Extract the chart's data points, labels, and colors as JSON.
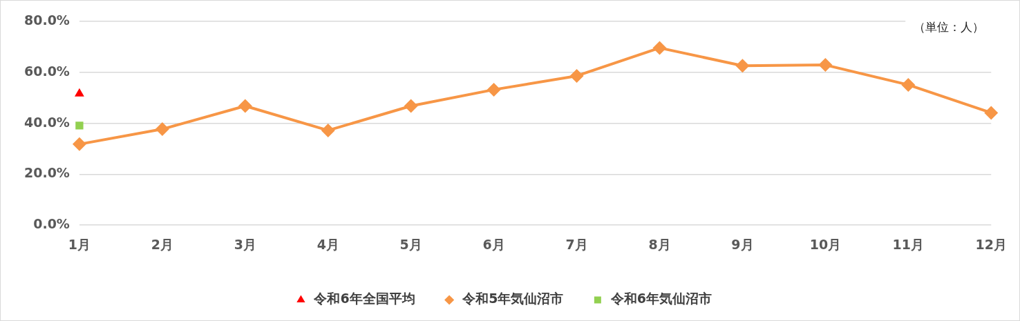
{
  "chart_data": {
    "type": "line",
    "categories": [
      "1月",
      "2月",
      "3月",
      "4月",
      "5月",
      "6月",
      "7月",
      "8月",
      "9月",
      "10月",
      "11月",
      "12月"
    ],
    "series": [
      {
        "name": "令和6年全国平均",
        "color": "#ff0000",
        "marker": "triangle",
        "values": [
          51.6,
          null,
          null,
          null,
          null,
          null,
          null,
          null,
          null,
          null,
          null,
          null
        ]
      },
      {
        "name": "令和5年気仙沼市",
        "color": "#f79646",
        "marker": "diamond",
        "values": [
          31.8,
          37.7,
          46.8,
          37.2,
          46.8,
          53.2,
          58.6,
          69.6,
          62.6,
          62.9,
          55.1,
          44.1
        ]
      },
      {
        "name": "令和6年気仙沼市",
        "color": "#92d050",
        "marker": "square",
        "values": [
          39.1,
          null,
          null,
          null,
          null,
          null,
          null,
          null,
          null,
          null,
          null,
          null
        ]
      }
    ],
    "ylim": [
      0,
      80
    ],
    "yticks": [
      {
        "value": 0,
        "label": "0.0%"
      },
      {
        "value": 20,
        "label": "20.0%"
      },
      {
        "value": 40,
        "label": "40.0%"
      },
      {
        "value": 60,
        "label": "60.0%"
      },
      {
        "value": 80,
        "label": "80.0%"
      }
    ],
    "grid": "y",
    "legend": "bottom",
    "line_style": "solid",
    "annotations": [
      "（単位：人）"
    ]
  }
}
